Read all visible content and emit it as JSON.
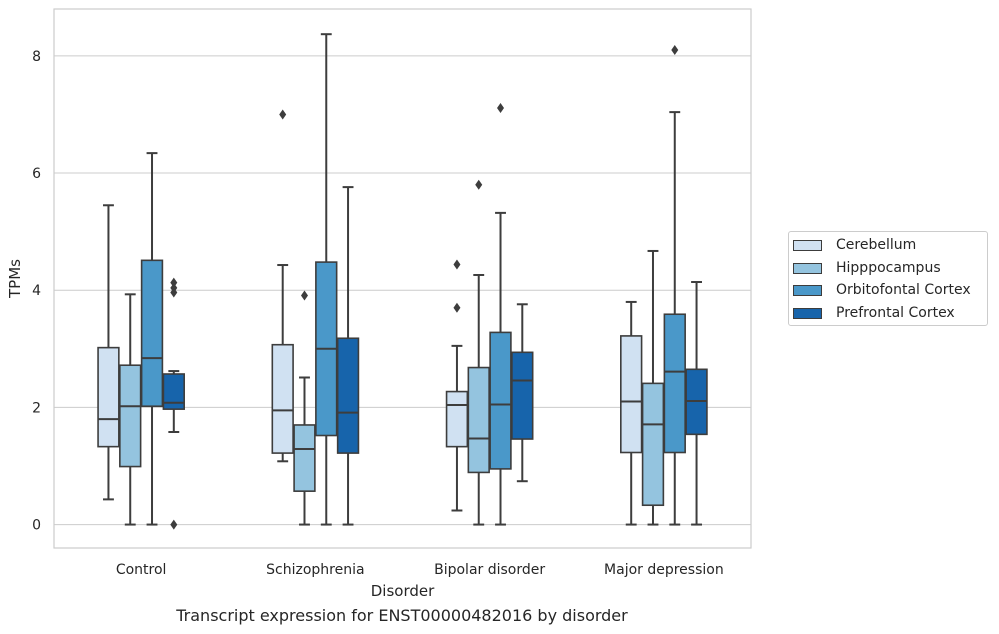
{
  "chart_data": {
    "type": "box",
    "xlabel": "Disorder",
    "ylabel": "TPMs",
    "caption": "Transcript expression for ENST00000482016 by disorder",
    "ylim": [
      -0.4,
      8.8
    ],
    "yticks": [
      0,
      2,
      4,
      6,
      8
    ],
    "categories": [
      "Control",
      "Schizophrenia",
      "Bipolar disorder",
      "Major depression"
    ],
    "grid": "horizontal",
    "legend_position": "right",
    "series": [
      {
        "name": "Cerebellum",
        "color": "#d0e1f2",
        "boxes": [
          {
            "whisker_low": 0.43,
            "q1": 1.33,
            "median": 1.8,
            "q3": 3.02,
            "whisker_high": 5.45,
            "outliers": []
          },
          {
            "whisker_low": 1.08,
            "q1": 1.22,
            "median": 1.95,
            "q3": 3.07,
            "whisker_high": 4.43,
            "outliers": [
              7.0
            ]
          },
          {
            "whisker_low": 0.24,
            "q1": 1.33,
            "median": 2.04,
            "q3": 2.27,
            "whisker_high": 3.05,
            "outliers": [
              3.7,
              4.44
            ]
          },
          {
            "whisker_low": 0.0,
            "q1": 1.23,
            "median": 2.1,
            "q3": 3.22,
            "whisker_high": 3.8,
            "outliers": []
          }
        ]
      },
      {
        "name": "Hipppocampus",
        "color": "#94c4df",
        "boxes": [
          {
            "whisker_low": 0.0,
            "q1": 0.99,
            "median": 2.02,
            "q3": 2.72,
            "whisker_high": 3.93,
            "outliers": []
          },
          {
            "whisker_low": 0.0,
            "q1": 0.57,
            "median": 1.29,
            "q3": 1.7,
            "whisker_high": 2.51,
            "outliers": [
              3.91
            ]
          },
          {
            "whisker_low": 0.0,
            "q1": 0.89,
            "median": 1.47,
            "q3": 2.68,
            "whisker_high": 4.26,
            "outliers": [
              5.8
            ]
          },
          {
            "whisker_low": 0.0,
            "q1": 0.33,
            "median": 1.71,
            "q3": 2.41,
            "whisker_high": 4.67,
            "outliers": []
          }
        ]
      },
      {
        "name": "Orbitofontal Cortex",
        "color": "#4a98c9",
        "boxes": [
          {
            "whisker_low": 0.0,
            "q1": 2.02,
            "median": 2.84,
            "q3": 4.51,
            "whisker_high": 6.34,
            "outliers": []
          },
          {
            "whisker_low": 0.0,
            "q1": 1.52,
            "median": 3.0,
            "q3": 4.48,
            "whisker_high": 8.37,
            "outliers": []
          },
          {
            "whisker_low": 0.0,
            "q1": 0.95,
            "median": 2.05,
            "q3": 3.28,
            "whisker_high": 5.32,
            "outliers": [
              7.11
            ]
          },
          {
            "whisker_low": 0.0,
            "q1": 1.23,
            "median": 2.61,
            "q3": 3.59,
            "whisker_high": 7.04,
            "outliers": [
              8.1
            ]
          }
        ]
      },
      {
        "name": "Prefrontal Cortex",
        "color": "#1764ab",
        "boxes": [
          {
            "whisker_low": 1.58,
            "q1": 1.97,
            "median": 2.08,
            "q3": 2.57,
            "whisker_high": 2.62,
            "outliers": [
              0.0,
              3.96,
              4.04,
              4.13
            ]
          },
          {
            "whisker_low": 0.0,
            "q1": 1.22,
            "median": 1.91,
            "q3": 3.18,
            "whisker_high": 5.76,
            "outliers": []
          },
          {
            "whisker_low": 0.74,
            "q1": 1.46,
            "median": 2.46,
            "q3": 2.94,
            "whisker_high": 3.76,
            "outliers": []
          },
          {
            "whisker_low": 0.0,
            "q1": 1.54,
            "median": 2.11,
            "q3": 2.65,
            "whisker_high": 4.14,
            "outliers": []
          }
        ]
      }
    ]
  }
}
